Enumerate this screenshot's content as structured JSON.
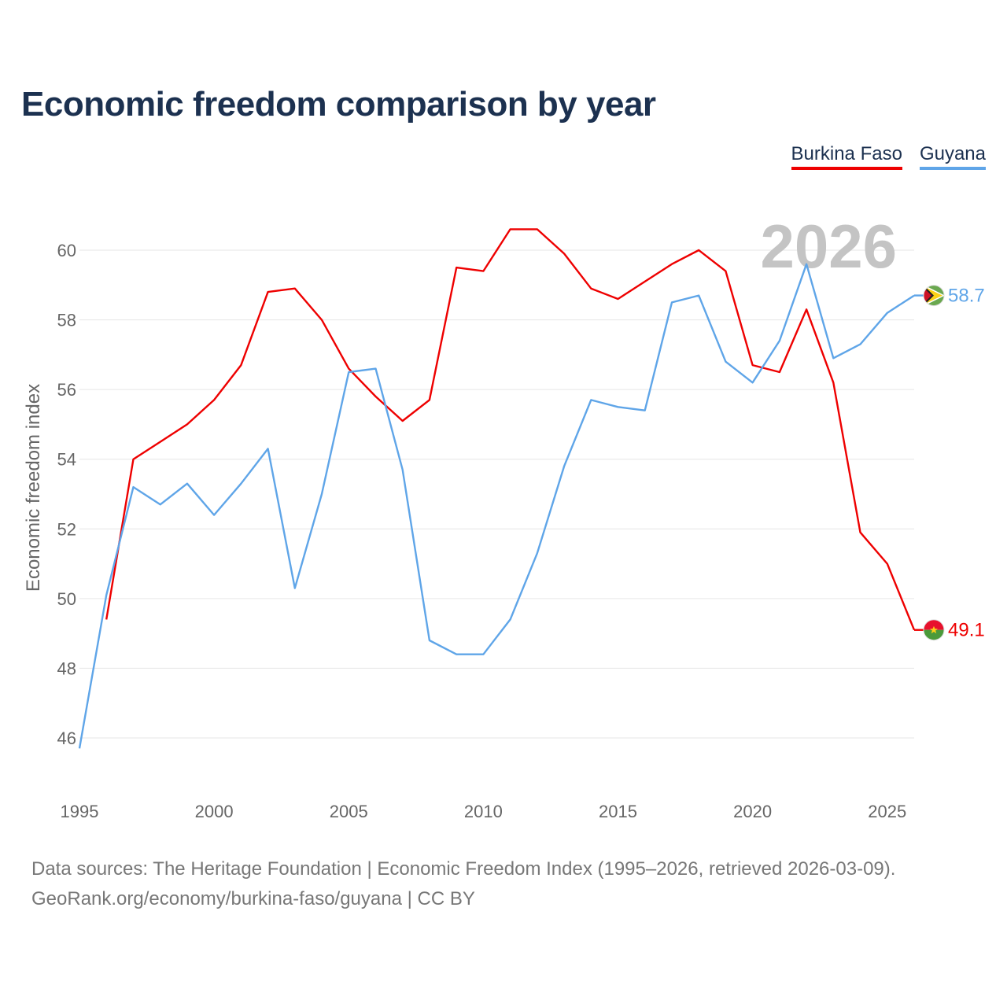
{
  "title": "Economic freedom comparison by year",
  "legend": [
    {
      "label": "Burkina Faso",
      "color": "#ee0000"
    },
    {
      "label": "Guyana",
      "color": "#5fa5e8"
    }
  ],
  "footer": {
    "line1": "Data sources: The Heritage Foundation | Economic Freedom Index (1995–2026, retrieved 2026-03-09).",
    "line2": "GeoRank.org/economy/burkina-faso/guyana | CC BY"
  },
  "chart_data": {
    "type": "line",
    "title": "Economic freedom comparison by year",
    "ylabel": "Economic freedom index",
    "xlabel": "",
    "year_watermark": "2026",
    "xlim": [
      1995,
      2026
    ],
    "ylim": [
      45,
      61.5
    ],
    "x_ticks": [
      1995,
      2000,
      2005,
      2010,
      2015,
      2020,
      2025
    ],
    "y_ticks": [
      46,
      48,
      50,
      52,
      54,
      56,
      58,
      60
    ],
    "grid": true,
    "legend_position": "top-right",
    "series": [
      {
        "name": "Burkina Faso",
        "color": "#ee0000",
        "end_label": "49.1",
        "flag_icon": "burkina-faso-flag-icon",
        "x": [
          1996,
          1997,
          1998,
          1999,
          2000,
          2001,
          2002,
          2003,
          2004,
          2005,
          2006,
          2007,
          2008,
          2009,
          2010,
          2011,
          2012,
          2013,
          2014,
          2015,
          2016,
          2017,
          2018,
          2019,
          2020,
          2021,
          2022,
          2023,
          2024,
          2025,
          2026
        ],
        "values": [
          49.4,
          54.0,
          54.5,
          55.0,
          55.7,
          56.7,
          58.8,
          58.9,
          58.0,
          56.6,
          55.8,
          55.1,
          55.7,
          59.5,
          59.4,
          60.6,
          60.6,
          59.9,
          58.9,
          58.6,
          59.1,
          59.6,
          60.0,
          59.4,
          56.7,
          56.5,
          58.3,
          56.2,
          51.9,
          51.0,
          49.1
        ]
      },
      {
        "name": "Guyana",
        "color": "#5fa5e8",
        "end_label": "58.7",
        "flag_icon": "guyana-flag-icon",
        "x": [
          1995,
          1996,
          1997,
          1998,
          1999,
          2000,
          2001,
          2002,
          2003,
          2004,
          2005,
          2006,
          2007,
          2008,
          2009,
          2010,
          2011,
          2012,
          2013,
          2014,
          2015,
          2016,
          2017,
          2018,
          2019,
          2020,
          2021,
          2022,
          2023,
          2024,
          2025,
          2026
        ],
        "values": [
          45.7,
          50.1,
          53.2,
          52.7,
          53.3,
          52.4,
          53.3,
          54.3,
          50.3,
          53.0,
          56.5,
          56.6,
          53.7,
          48.8,
          48.4,
          48.4,
          49.4,
          51.3,
          53.8,
          55.7,
          55.5,
          55.4,
          58.5,
          58.7,
          56.8,
          56.2,
          57.4,
          59.6,
          56.9,
          57.3,
          58.2,
          58.7
        ]
      }
    ]
  }
}
